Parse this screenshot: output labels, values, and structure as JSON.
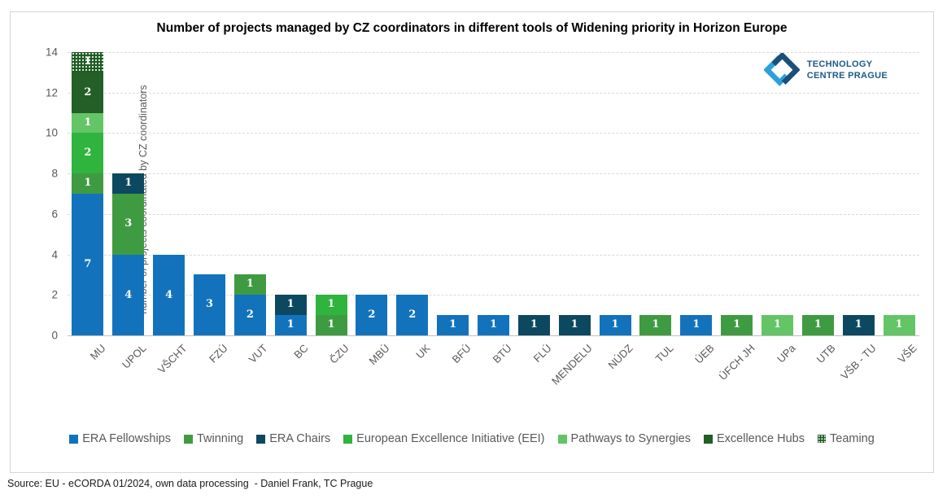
{
  "logo": {
    "line1": "TECHNOLOGY",
    "line2": "CENTRE PRAGUE"
  },
  "source": "Source: EU - eCORDA 01/2024, own data processing  - Daniel Frank, TC Prague",
  "colors": {
    "era_fellowships": "#1273BC",
    "twinning": "#3F9B42",
    "era_chairs": "#0D4861",
    "eei": "#2FB43E",
    "pathways": "#63C566",
    "excellence_hubs": "#235F26",
    "teaming_base": "#1F5B23",
    "gridline": "#D9D9D9",
    "axis_text": "#595959",
    "logo_light_blue": "#2BA0DB",
    "logo_dark_blue": "#1B4E79"
  },
  "chart_data": {
    "type": "bar",
    "stacked": true,
    "title": "Number of projects managed by CZ coordinators in different tools of Widening priority in Horizon Europe",
    "xlabel": "",
    "ylabel": "number of projects coordinated by CZ coordinators",
    "ylim": [
      0,
      14
    ],
    "yticks": [
      0,
      2,
      4,
      6,
      8,
      10,
      12,
      14
    ],
    "grid": "horizontal-dashed",
    "legend_position": "bottom",
    "bar_value_labels": "white, inside segments",
    "categories": [
      "MU",
      "UPOL",
      "VŠCHT",
      "FZÚ",
      "VUT",
      "BC",
      "ČZU",
      "MBÚ",
      "UK",
      "BFÚ",
      "BTÚ",
      "FLÚ",
      "MENDELU",
      "NÚDZ",
      "TUL",
      "ÚEB",
      "ÚFCH JH",
      "UPa",
      "UTB",
      "VŠB - TU",
      "VŠE"
    ],
    "series": [
      {
        "name": "ERA Fellowships",
        "color": "#1273BC",
        "pattern": "solid",
        "values": [
          7,
          4,
          4,
          3,
          2,
          1,
          0,
          2,
          2,
          1,
          1,
          0,
          0,
          1,
          0,
          1,
          0,
          0,
          0,
          0,
          0
        ]
      },
      {
        "name": "Twinning",
        "color": "#3F9B42",
        "pattern": "solid",
        "values": [
          1,
          3,
          0,
          0,
          1,
          0,
          1,
          0,
          0,
          0,
          0,
          0,
          0,
          0,
          1,
          0,
          1,
          0,
          1,
          0,
          0
        ]
      },
      {
        "name": "ERA Chairs",
        "color": "#0D4861",
        "pattern": "solid",
        "values": [
          0,
          1,
          0,
          0,
          0,
          1,
          0,
          0,
          0,
          0,
          0,
          1,
          1,
          0,
          0,
          0,
          0,
          0,
          0,
          1,
          0
        ]
      },
      {
        "name": "European Excellence Initiative (EEI)",
        "color": "#2FB43E",
        "pattern": "solid",
        "values": [
          2,
          0,
          0,
          0,
          0,
          0,
          1,
          0,
          0,
          0,
          0,
          0,
          0,
          0,
          0,
          0,
          0,
          0,
          0,
          0,
          0
        ]
      },
      {
        "name": "Pathways to Synergies",
        "color": "#63C566",
        "pattern": "solid",
        "values": [
          1,
          0,
          0,
          0,
          0,
          0,
          0,
          0,
          0,
          0,
          0,
          0,
          0,
          0,
          0,
          0,
          0,
          1,
          0,
          0,
          1
        ]
      },
      {
        "name": "Excellence Hubs",
        "color": "#235F26",
        "pattern": "solid",
        "values": [
          2,
          0,
          0,
          0,
          0,
          0,
          0,
          0,
          0,
          0,
          0,
          0,
          0,
          0,
          0,
          0,
          0,
          0,
          0,
          0,
          0
        ]
      },
      {
        "name": "Teaming",
        "color": "#1F5B23",
        "pattern": "white-dots",
        "values": [
          1,
          0,
          0,
          0,
          0,
          0,
          0,
          0,
          0,
          0,
          0,
          0,
          0,
          0,
          0,
          0,
          0,
          0,
          0,
          0,
          0
        ]
      }
    ],
    "totals": [
      14,
      8,
      4,
      3,
      3,
      2,
      2,
      2,
      2,
      1,
      1,
      1,
      1,
      1,
      1,
      1,
      1,
      1,
      1,
      1,
      1
    ]
  }
}
